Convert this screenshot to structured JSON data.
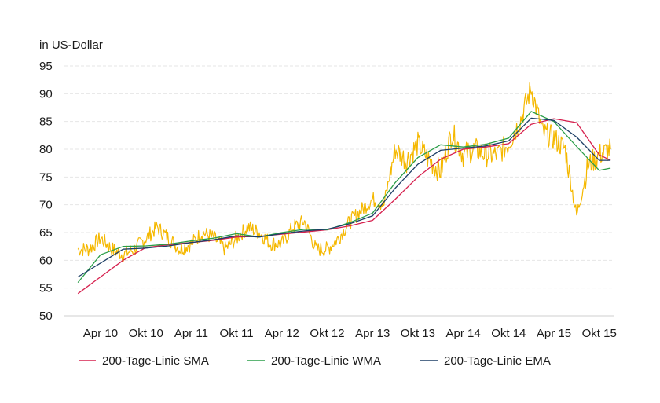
{
  "chart_data": {
    "type": "line",
    "ylabel": "in US-Dollar",
    "ylim": [
      50,
      95
    ],
    "yticks": [
      50,
      55,
      60,
      65,
      70,
      75,
      80,
      85,
      90,
      95
    ],
    "grid": true,
    "legend_position": "bottom",
    "categories": [
      "Apr 10",
      "Okt 10",
      "Apr 11",
      "Okt 11",
      "Apr 12",
      "Okt 12",
      "Apr 13",
      "Okt 13",
      "Apr 14",
      "Okt 14",
      "Apr 15",
      "Okt 15"
    ],
    "series": [
      {
        "name": "",
        "color": "#f5b800",
        "role": "price",
        "x": [
          -0.5,
          -0.25,
          0,
          0.25,
          0.5,
          0.75,
          1,
          1.25,
          1.5,
          1.75,
          2,
          2.25,
          2.5,
          2.75,
          3,
          3.25,
          3.5,
          3.75,
          4,
          4.25,
          4.5,
          4.75,
          5,
          5.25,
          5.5,
          5.75,
          6,
          6.25,
          6.5,
          6.75,
          7,
          7.25,
          7.5,
          7.75,
          8,
          8.25,
          8.5,
          8.75,
          9,
          9.25,
          9.5,
          9.75,
          10,
          10.25,
          10.5,
          10.75,
          11,
          11.25
        ],
        "values": [
          62,
          62,
          64,
          62,
          61,
          62,
          64,
          66,
          64,
          62,
          63,
          65,
          64,
          62,
          64,
          66,
          65,
          63,
          63,
          66,
          67,
          62,
          62,
          64,
          67,
          69,
          71,
          70,
          80,
          78,
          81,
          78,
          76,
          83,
          79,
          80,
          79,
          79,
          81,
          85,
          91,
          83,
          82,
          80,
          68,
          77,
          79,
          80
        ]
      },
      {
        "name": "200-Tage-Linie SMA",
        "color": "#d6204e",
        "x": [
          -0.5,
          0,
          0.5,
          1,
          1.5,
          2,
          2.5,
          3,
          3.5,
          4,
          4.5,
          5,
          5.5,
          6,
          6.5,
          7,
          7.5,
          8,
          8.5,
          9,
          9.5,
          10,
          10.5,
          11,
          11.25
        ],
        "values": [
          54,
          57,
          60,
          62.3,
          62.8,
          63.2,
          63.6,
          64.2,
          64.3,
          64.7,
          65.1,
          65.5,
          66.2,
          67.2,
          71,
          75,
          78.2,
          80,
          80.4,
          81,
          84.5,
          85.5,
          84.8,
          79,
          78
        ]
      },
      {
        "name": "200-Tage-Linie WMA",
        "color": "#2a9d48",
        "x": [
          -0.5,
          0,
          0.5,
          1,
          1.5,
          2,
          2.5,
          3,
          3.5,
          4,
          4.5,
          5,
          5.5,
          6,
          6.5,
          7,
          7.5,
          8,
          8.5,
          9,
          9.5,
          10,
          10.5,
          11,
          11.25
        ],
        "values": [
          56,
          61,
          62.5,
          62.6,
          62.9,
          63.5,
          64,
          64.8,
          64.2,
          65,
          65.6,
          65.5,
          66.8,
          68.5,
          74,
          78.5,
          80.8,
          80.4,
          80.9,
          82,
          86.8,
          85,
          80.5,
          76.2,
          76.6
        ]
      },
      {
        "name": "200-Tage-Linie EMA",
        "color": "#1d3f66",
        "x": [
          -0.5,
          0,
          0.5,
          1,
          1.5,
          2,
          2.5,
          3,
          3.5,
          4,
          4.5,
          5,
          5.5,
          6,
          6.5,
          7,
          7.5,
          8,
          8.5,
          9,
          9.5,
          10,
          10.5,
          11,
          11.25
        ],
        "values": [
          57,
          59.5,
          62,
          62.2,
          62.6,
          63.2,
          63.7,
          64.4,
          64.2,
          64.8,
          65.3,
          65.6,
          66.6,
          68,
          73,
          77.3,
          79.8,
          80.2,
          80.6,
          81.5,
          85.6,
          85.2,
          82.2,
          78,
          78
        ]
      }
    ]
  }
}
